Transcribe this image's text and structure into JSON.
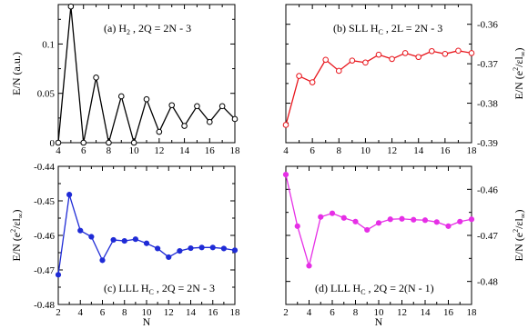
{
  "figure": {
    "xlabel": "N"
  },
  "chart_data": [
    {
      "type": "line",
      "panel": "a",
      "annotation": {
        "pre": "(a) H",
        "sub": "2",
        "post": " , 2Q = 2N - 3"
      },
      "ylabel": {
        "main": "E/N (a.u.)"
      },
      "xlim": [
        4,
        18
      ],
      "xticks": [
        "4",
        "6",
        "8",
        "10",
        "12",
        "14",
        "16",
        "18"
      ],
      "ylim": [
        0,
        0.14
      ],
      "yticks": [
        0,
        0.05,
        0.1
      ],
      "ytick_labels": [
        "0",
        "0.05",
        "0.1"
      ],
      "y_axis_side": "left",
      "show_xticklabels": true,
      "color": "#000000",
      "marker": "open-circle",
      "series": [
        {
          "x": [
            4,
            5,
            6,
            7,
            8,
            9,
            10,
            11,
            12,
            13,
            14,
            15,
            16,
            17,
            18
          ],
          "values": [
            0.0,
            0.138,
            0.0,
            0.066,
            0.0,
            0.047,
            0.0,
            0.044,
            0.011,
            0.038,
            0.017,
            0.037,
            0.021,
            0.037,
            0.024
          ]
        }
      ]
    },
    {
      "type": "line",
      "panel": "b",
      "annotation": {
        "pre": "(b) SLL H",
        "sub": "C",
        "post": " , 2L = 2N - 3"
      },
      "ylabel": {
        "main": "E/N (e",
        "sup": "2",
        "mid": "/εl",
        "sub": "∞",
        "end": ")"
      },
      "xlim": [
        4,
        18
      ],
      "xticks": [
        "4",
        "6",
        "8",
        "10",
        "12",
        "14",
        "16",
        "18"
      ],
      "ylim": [
        -0.39,
        -0.355
      ],
      "yticks": [
        -0.39,
        -0.38,
        -0.37,
        -0.36
      ],
      "ytick_labels": [
        "-0.39",
        "-0.38",
        "-0.37",
        "-0.36"
      ],
      "y_axis_side": "right",
      "show_xticklabels": true,
      "color": "#e8141b",
      "marker": "open-circle",
      "series": [
        {
          "x": [
            4,
            5,
            6,
            7,
            8,
            9,
            10,
            11,
            12,
            13,
            14,
            15,
            16,
            17,
            18
          ],
          "values": [
            -0.3855,
            -0.3731,
            -0.3747,
            -0.369,
            -0.3718,
            -0.3692,
            -0.3697,
            -0.3677,
            -0.3688,
            -0.3673,
            -0.3683,
            -0.3668,
            -0.3675,
            -0.3667,
            -0.3673
          ]
        }
      ]
    },
    {
      "type": "line",
      "panel": "c",
      "annotation": {
        "pre": "(c) LLL H",
        "sub": "C",
        "post": " , 2Q = 2N - 3"
      },
      "ylabel": {
        "main": "E/N (e",
        "sup": "2",
        "mid": "/εl",
        "sub": "∞",
        "end": ")"
      },
      "xlim": [
        2,
        18
      ],
      "xticks": [
        "2",
        "4",
        "6",
        "8",
        "10",
        "12",
        "14",
        "16",
        "18"
      ],
      "ylim": [
        -0.48,
        -0.44
      ],
      "yticks": [
        -0.48,
        -0.47,
        -0.46,
        -0.45,
        -0.44
      ],
      "ytick_labels": [
        "-0.48",
        "-0.47",
        "-0.46",
        "-0.45",
        "-0.44"
      ],
      "y_axis_side": "left",
      "show_xticklabels": true,
      "color": "#1f2bd6",
      "marker": "filled-circle",
      "series": [
        {
          "x": [
            2,
            3,
            4,
            5,
            6,
            7,
            8,
            9,
            10,
            11,
            12,
            13,
            14,
            15,
            16,
            17,
            18
          ],
          "values": [
            -0.4714,
            -0.4482,
            -0.4586,
            -0.4604,
            -0.4672,
            -0.4613,
            -0.4616,
            -0.4611,
            -0.4623,
            -0.4638,
            -0.4663,
            -0.4645,
            -0.4637,
            -0.4635,
            -0.4635,
            -0.4638,
            -0.4643
          ]
        }
      ]
    },
    {
      "type": "line",
      "panel": "d",
      "annotation": {
        "pre": "(d) LLL H",
        "sub": "C",
        "post": " , 2Q = 2(N - 1)"
      },
      "ylabel": {
        "main": "E/N (e",
        "sup": "2",
        "mid": "/εl",
        "sub": "∞",
        "end": ")"
      },
      "xlim": [
        2,
        18
      ],
      "xticks": [
        "2",
        "4",
        "6",
        "8",
        "10",
        "12",
        "14",
        "16",
        "18"
      ],
      "ylim": [
        -0.485,
        -0.455
      ],
      "yticks": [
        -0.48,
        -0.47,
        -0.46
      ],
      "ytick_labels": [
        "-0.48",
        "-0.47",
        "-0.46"
      ],
      "y_axis_side": "right",
      "show_xticklabels": true,
      "color": "#e62fe6",
      "marker": "filled-circle",
      "series": [
        {
          "x": [
            2,
            3,
            4,
            5,
            6,
            7,
            8,
            9,
            10,
            11,
            12,
            13,
            14,
            15,
            16,
            17,
            18
          ],
          "values": [
            -0.4568,
            -0.468,
            -0.4766,
            -0.466,
            -0.4652,
            -0.4662,
            -0.467,
            -0.4688,
            -0.4673,
            -0.4665,
            -0.4664,
            -0.4666,
            -0.4667,
            -0.4671,
            -0.468,
            -0.467,
            -0.4665
          ]
        }
      ]
    }
  ]
}
